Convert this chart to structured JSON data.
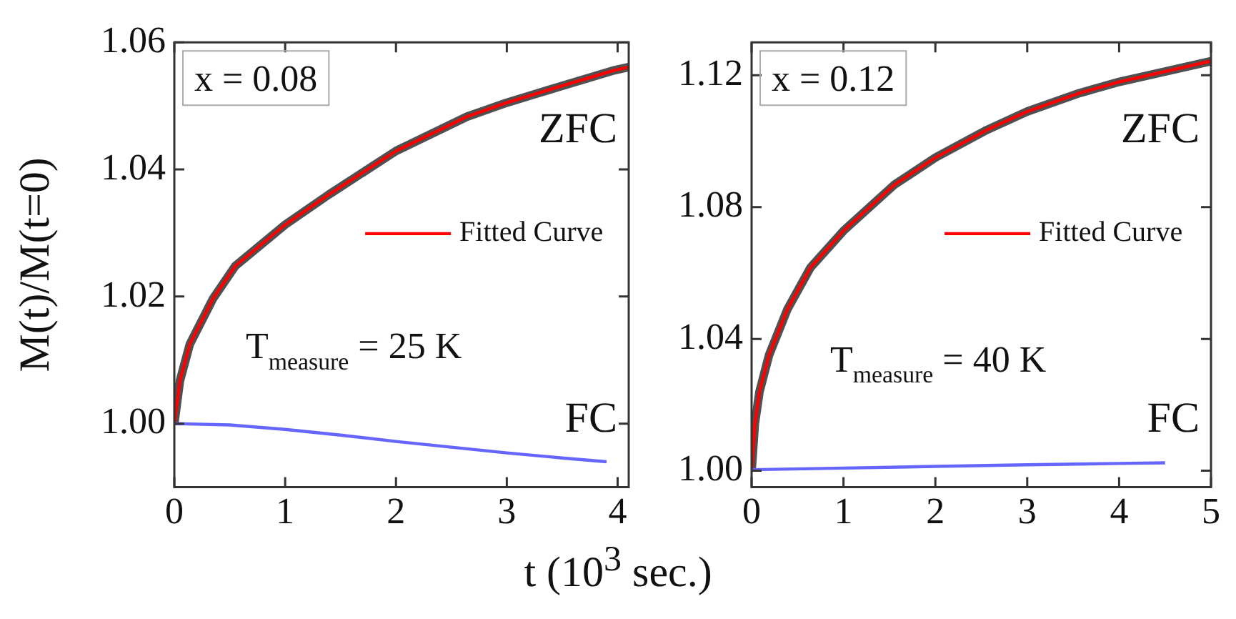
{
  "chart_data": [
    {
      "type": "line",
      "ylabel": "M(t)/M(t=0)",
      "xlabel": "t (10$^{3}$ sec.)",
      "xlim": [
        0,
        4.1
      ],
      "xticks": [
        0,
        1,
        2,
        3,
        4
      ],
      "ylim": [
        0.99,
        1.06
      ],
      "yticks": [
        {
          "value": 1,
          "label": "1.00"
        },
        1.02,
        1.04,
        1.06
      ],
      "grid": false,
      "legend": "right",
      "marker": "none",
      "line_style": "solid",
      "series": [
        {
          "color": "#505050",
          "x": [
            0,
            0.05,
            0.14,
            0.35,
            0.55,
            1.0,
            1.39,
            2.0,
            2.64,
            3.0,
            3.47,
            3.97,
            4.1
          ],
          "values": [
            1.0,
            1.0067,
            1.0125,
            1.0197,
            1.0248,
            1.0313,
            1.036,
            1.0429,
            1.0483,
            1.0505,
            1.053,
            1.0556,
            1.0561
          ]
        },
        {
          "name": "Fitted Curve",
          "color": "#ff0000",
          "x": [
            0,
            0.05,
            0.14,
            0.35,
            0.55,
            1.0,
            1.39,
            2.0,
            2.64,
            3.0,
            3.47,
            3.97,
            4.1
          ],
          "values": [
            1.0,
            1.0067,
            1.0125,
            1.0197,
            1.0248,
            1.0313,
            1.036,
            1.0429,
            1.0483,
            1.0505,
            1.053,
            1.0556,
            1.0561
          ]
        },
        {
          "color": "#6666ff",
          "x": [
            0,
            0.5,
            1,
            1.5,
            2,
            2.5,
            3,
            3.5,
            3.9
          ],
          "values": [
            1.0,
            0.9998,
            0.9991,
            0.9982,
            0.9972,
            0.9963,
            0.9954,
            0.9946,
            0.994
          ]
        }
      ],
      "annotations": [
        "x = 0.08",
        "T$_{measure}$ = 25 K",
        "ZFC",
        "FC"
      ]
    },
    {
      "type": "line",
      "xlim": [
        0,
        5
      ],
      "xticks": [
        0,
        1,
        2,
        3,
        4,
        5
      ],
      "ylim": [
        0.995,
        1.13
      ],
      "yticks": [
        {
          "value": 1,
          "label": "1.00"
        },
        1.04,
        1.08,
        1.12
      ],
      "grid": false,
      "legend": "right",
      "marker": "none",
      "line_style": "solid",
      "series": [
        {
          "color": "#505050",
          "x": [
            0,
            0.035,
            0.086,
            0.19,
            0.39,
            0.64,
            1.0,
            1.55,
            2.0,
            2.56,
            3.0,
            3.57,
            4.0,
            5.0
          ],
          "values": [
            1.0,
            1.0142,
            1.024,
            1.0351,
            1.049,
            1.0616,
            1.0728,
            1.0867,
            1.095,
            1.1034,
            1.109,
            1.1146,
            1.118,
            1.1243
          ]
        },
        {
          "name": "Fitted Curve",
          "color": "#ff0000",
          "x": [
            0,
            0.035,
            0.086,
            0.19,
            0.39,
            0.64,
            1.0,
            1.55,
            2.0,
            2.56,
            3.0,
            3.57,
            4.0,
            5.0
          ],
          "values": [
            1.0,
            1.0142,
            1.024,
            1.0351,
            1.049,
            1.0616,
            1.0728,
            1.0867,
            1.095,
            1.1034,
            1.109,
            1.1146,
            1.118,
            1.1243
          ]
        },
        {
          "color": "#6666ff",
          "x": [
            0,
            1,
            2,
            3,
            4,
            4.5
          ],
          "values": [
            1.0003,
            1.0008,
            1.0013,
            1.0018,
            1.0022,
            1.0024
          ]
        }
      ],
      "annotations": [
        "x = 0.12",
        "T$_{measure}$ = 40 K",
        "ZFC",
        "FC"
      ]
    }
  ]
}
